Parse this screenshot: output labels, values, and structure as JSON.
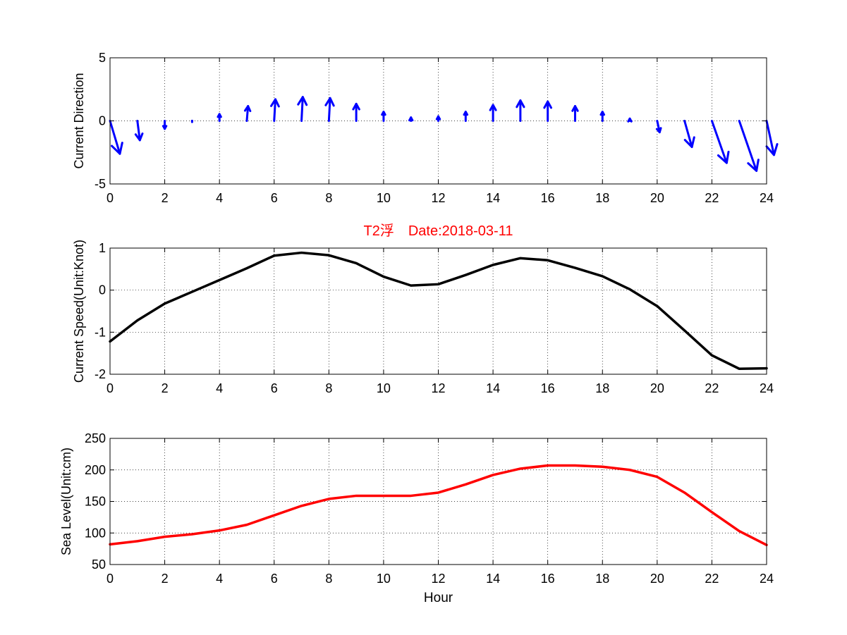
{
  "chart_data": [
    {
      "type": "quiver",
      "ylabel": "Current Direction",
      "xlim": [
        0,
        24
      ],
      "ylim": [
        -5,
        5
      ],
      "xticks": [
        "0",
        "2",
        "4",
        "6",
        "8",
        "10",
        "12",
        "14",
        "16",
        "18",
        "20",
        "22",
        "24"
      ],
      "yticks": [
        "5",
        "0",
        "-5"
      ],
      "grid": true,
      "color": "#0000ff",
      "x": [
        0,
        1,
        2,
        3,
        4,
        5,
        6,
        7,
        8,
        9,
        10,
        11,
        12,
        13,
        14,
        15,
        16,
        17,
        18,
        19,
        20,
        21,
        22,
        23,
        24
      ],
      "u": [
        0.4,
        0.1,
        0.0,
        0.0,
        0.0,
        0.05,
        0.05,
        0.05,
        0.05,
        0.0,
        0.0,
        0.0,
        0.0,
        0.0,
        0.0,
        0.0,
        0.0,
        0.0,
        0.0,
        0.0,
        0.1,
        0.3,
        0.6,
        0.7,
        0.3
      ],
      "v": [
        -2.9,
        -1.7,
        -0.7,
        -0.1,
        0.6,
        1.3,
        1.9,
        2.1,
        2.0,
        1.5,
        0.8,
        0.3,
        0.4,
        0.8,
        1.4,
        1.8,
        1.7,
        1.3,
        0.8,
        0.2,
        -1.0,
        -2.3,
        -3.7,
        -4.4,
        -3.0
      ]
    },
    {
      "type": "line",
      "title": "T2浮　Date:2018-03-11",
      "ylabel": "Current Speed(Unit:Knot)",
      "xlim": [
        0,
        24
      ],
      "ylim": [
        -2,
        1
      ],
      "xticks": [
        "0",
        "2",
        "4",
        "6",
        "8",
        "10",
        "12",
        "14",
        "16",
        "18",
        "20",
        "22",
        "24"
      ],
      "yticks": [
        "1",
        "0",
        "-1",
        "-2"
      ],
      "grid": true,
      "color": "#000000",
      "x": [
        0,
        1,
        2,
        3,
        4,
        5,
        6,
        7,
        8,
        9,
        10,
        11,
        12,
        13,
        14,
        15,
        16,
        17,
        18,
        19,
        20,
        21,
        22,
        23,
        24
      ],
      "y": [
        -1.22,
        -0.72,
        -0.32,
        -0.04,
        0.24,
        0.52,
        0.82,
        0.89,
        0.83,
        0.64,
        0.32,
        0.11,
        0.14,
        0.36,
        0.6,
        0.76,
        0.71,
        0.53,
        0.33,
        0.02,
        -0.38,
        -0.96,
        -1.55,
        -1.87,
        -1.86
      ]
    },
    {
      "type": "line",
      "xlabel": "Hour",
      "ylabel": "Sea Level(Unit:cm)",
      "xlim": [
        0,
        24
      ],
      "ylim": [
        50,
        250
      ],
      "xticks": [
        "0",
        "2",
        "4",
        "6",
        "8",
        "10",
        "12",
        "14",
        "16",
        "18",
        "20",
        "22",
        "24"
      ],
      "yticks": [
        "250",
        "200",
        "150",
        "100",
        "50"
      ],
      "grid": true,
      "color": "#ff0000",
      "x": [
        0,
        1,
        2,
        3,
        4,
        5,
        6,
        7,
        8,
        9,
        10,
        11,
        12,
        13,
        14,
        15,
        16,
        17,
        18,
        19,
        20,
        21,
        22,
        23,
        24
      ],
      "y": [
        82,
        87,
        94,
        98,
        104,
        113,
        128,
        143,
        154,
        159,
        159,
        159,
        164,
        177,
        192,
        202,
        207,
        207,
        205,
        200,
        189,
        164,
        133,
        103,
        81
      ]
    }
  ]
}
